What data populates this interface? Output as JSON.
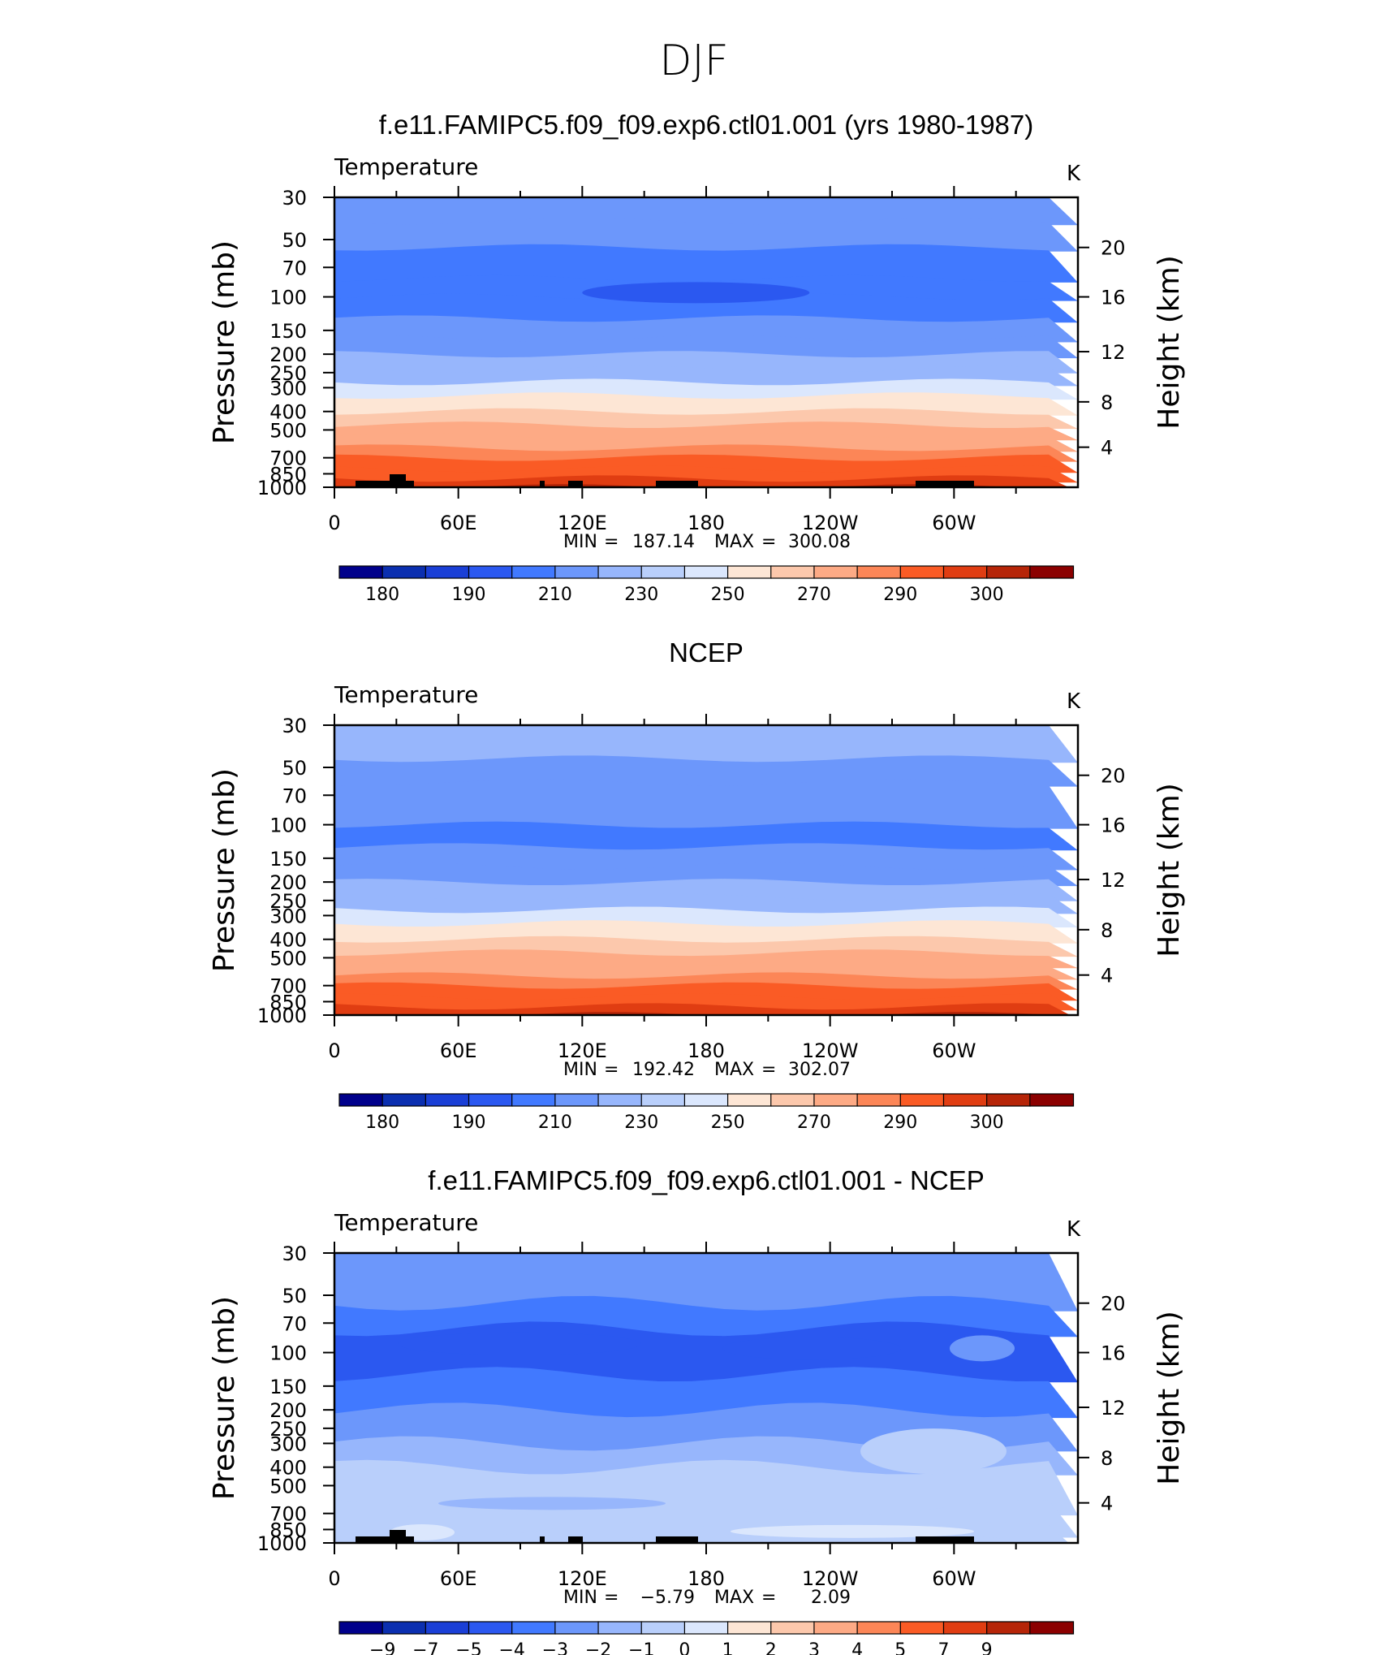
{
  "figure": {
    "title": "DJF"
  },
  "chart_data": [
    {
      "type": "heatmap",
      "title": "f.e11.FAMIPC5.f09_f09.exp6.ctl01.001 (yrs 1980-1987)",
      "subtitle_left": "Temperature",
      "units": "K",
      "ylabel": "Pressure (mb)",
      "ylabel_right": "Height (km)",
      "yticks": [
        "30",
        "50",
        "70",
        "100",
        "150",
        "200",
        "250",
        "300",
        "400",
        "500",
        "700",
        "850",
        "1000"
      ],
      "yticks_right": [
        "20",
        "16",
        "12",
        "8",
        "4"
      ],
      "xticks": [
        "0",
        "60E",
        "120E",
        "180",
        "120W",
        "60W"
      ],
      "ylim": [
        1000,
        30
      ],
      "stats": {
        "min_label": "MIN",
        "min": "187.14",
        "max_label": "MAX",
        "max": "300.08"
      },
      "colorbar_labels": [
        "180",
        "190",
        "210",
        "230",
        "250",
        "270",
        "290",
        "300"
      ],
      "bands": [
        {
          "level": "30",
          "value": 206
        },
        {
          "level": "40",
          "value": 203
        },
        {
          "level": "55",
          "value": 199
        },
        {
          "level": "80",
          "value": 197
        },
        {
          "level": "100",
          "value": 196
        },
        {
          "level": "130",
          "value": 200
        },
        {
          "level": "165",
          "value": 204
        },
        {
          "level": "200",
          "value": 211
        },
        {
          "level": "240",
          "value": 218
        },
        {
          "level": "280",
          "value": 232
        },
        {
          "level": "330",
          "value": 244
        },
        {
          "level": "400",
          "value": 255
        },
        {
          "level": "470",
          "value": 262
        },
        {
          "level": "540",
          "value": 268
        },
        {
          "level": "620",
          "value": 274
        },
        {
          "level": "700",
          "value": 280
        },
        {
          "level": "800",
          "value": 286
        },
        {
          "level": "900",
          "value": 292
        },
        {
          "level": "1000",
          "value": 297
        }
      ],
      "anomaly": {
        "lon": 175,
        "p": 95,
        "value": 187
      }
    },
    {
      "type": "heatmap",
      "title": "NCEP",
      "subtitle_left": "Temperature",
      "units": "K",
      "ylabel": "Pressure (mb)",
      "ylabel_right": "Height (km)",
      "yticks": [
        "30",
        "50",
        "70",
        "100",
        "150",
        "200",
        "250",
        "300",
        "400",
        "500",
        "700",
        "850",
        "1000"
      ],
      "yticks_right": [
        "20",
        "16",
        "12",
        "8",
        "4"
      ],
      "xticks": [
        "0",
        "60E",
        "120E",
        "180",
        "120W",
        "60W"
      ],
      "ylim": [
        1000,
        30
      ],
      "stats": {
        "min_label": "MIN",
        "min": "192.42",
        "max_label": "MAX",
        "max": "302.07"
      },
      "colorbar_labels": [
        "180",
        "190",
        "210",
        "230",
        "250",
        "270",
        "290",
        "300"
      ],
      "bands": [
        {
          "level": "30",
          "value": 212
        },
        {
          "level": "45",
          "value": 206
        },
        {
          "level": "60",
          "value": 200
        },
        {
          "level": "100",
          "value": 196
        },
        {
          "level": "130",
          "value": 200
        },
        {
          "level": "165",
          "value": 205
        },
        {
          "level": "200",
          "value": 212
        },
        {
          "level": "240",
          "value": 219
        },
        {
          "level": "280",
          "value": 232
        },
        {
          "level": "330",
          "value": 245
        },
        {
          "level": "400",
          "value": 255
        },
        {
          "level": "470",
          "value": 262
        },
        {
          "level": "540",
          "value": 268
        },
        {
          "level": "620",
          "value": 275
        },
        {
          "level": "700",
          "value": 281
        },
        {
          "level": "800",
          "value": 287
        },
        {
          "level": "900",
          "value": 293
        },
        {
          "level": "1000",
          "value": 299
        }
      ]
    },
    {
      "type": "heatmap",
      "title": "f.e11.FAMIPC5.f09_f09.exp6.ctl01.001 - NCEP",
      "subtitle_left": "Temperature",
      "units": "K",
      "ylabel": "Pressure (mb)",
      "ylabel_right": "Height (km)",
      "yticks": [
        "30",
        "50",
        "70",
        "100",
        "150",
        "200",
        "250",
        "300",
        "400",
        "500",
        "700",
        "850",
        "1000"
      ],
      "yticks_right": [
        "20",
        "16",
        "12",
        "8",
        "4"
      ],
      "xticks": [
        "0",
        "60E",
        "120E",
        "180",
        "120W",
        "60W"
      ],
      "ylim": [
        1000,
        30
      ],
      "stats": {
        "min_label": "MIN",
        "min": "−5.79",
        "max_label": "MAX",
        "max": "2.09"
      },
      "colorbar_labels": [
        "−9",
        "−7",
        "−5",
        "−4",
        "−3",
        "−2",
        "−1",
        "0",
        "1",
        "2",
        "3",
        "4",
        "5",
        "7",
        "9"
      ],
      "bands": [
        {
          "level": "30",
          "value": -2.5
        },
        {
          "level": "55",
          "value": -3.5
        },
        {
          "level": "75",
          "value": -4.5
        },
        {
          "level": "130",
          "value": -3.5
        },
        {
          "level": "200",
          "value": -2.5
        },
        {
          "level": "300",
          "value": -1.5
        },
        {
          "level": "400",
          "value": -0.5
        },
        {
          "level": "650",
          "value": -0.5
        },
        {
          "level": "850",
          "value": -0.5
        },
        {
          "level": "1000",
          "value": -0.5
        }
      ]
    }
  ],
  "colors": {
    "temperature_scale": [
      "#00008b",
      "#0b2fb0",
      "#1a3fd6",
      "#2b58f0",
      "#4179ff",
      "#6c97fb",
      "#97b6fc",
      "#b9cffb",
      "#dbe7fd",
      "#fde6d5",
      "#fcc8ac",
      "#fdaa85",
      "#fc8657",
      "#fa5b25",
      "#e03d12",
      "#b62508",
      "#8b0000"
    ],
    "difference_scale": [
      "#00008b",
      "#0b2fb0",
      "#1a3fd6",
      "#2b58f0",
      "#4179ff",
      "#6c97fb",
      "#97b6fc",
      "#b9cffb",
      "#dbe7fd",
      "#fde6d5",
      "#fcc8ac",
      "#fdaa85",
      "#fc8657",
      "#fa5b25",
      "#e03d12",
      "#b62508",
      "#8b0000"
    ]
  }
}
